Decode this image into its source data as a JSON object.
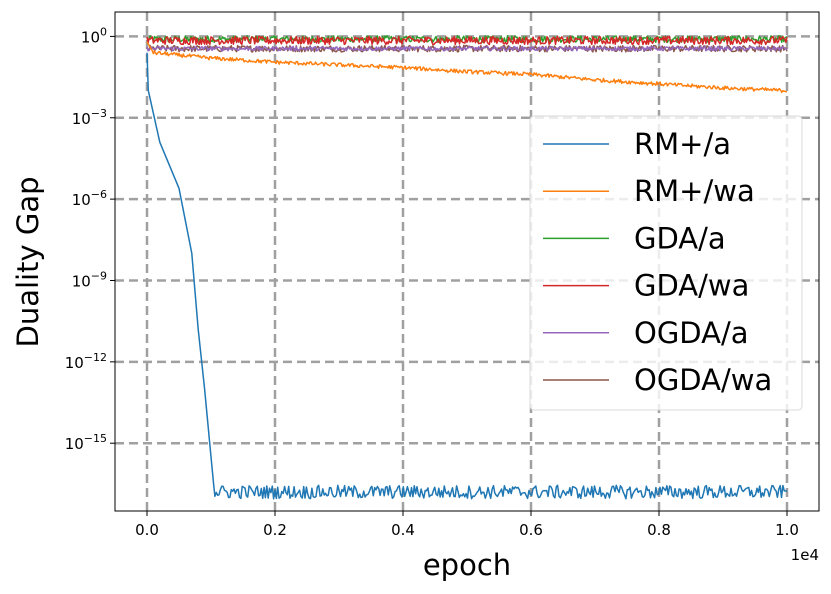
{
  "chart_data": {
    "type": "line",
    "title": "",
    "xlabel": "epoch",
    "ylabel": "Duality Gap",
    "x_offset_label": "1e4",
    "xlim": [
      -0.05,
      1.05
    ],
    "ylim_log10": [
      -17.5,
      0.9
    ],
    "x_ticks": [
      0.0,
      0.2,
      0.4,
      0.6,
      0.8,
      1.0
    ],
    "x_tick_labels": [
      "0.0",
      "0.2",
      "0.4",
      "0.6",
      "0.8",
      "1.0"
    ],
    "y_ticks_log10": [
      0,
      -3,
      -6,
      -9,
      -12,
      -15
    ],
    "y_tick_labels": [
      {
        "base": "10",
        "exp": "0"
      },
      {
        "base": "10",
        "exp": "−3"
      },
      {
        "base": "10",
        "exp": "−6"
      },
      {
        "base": "10",
        "exp": "−9"
      },
      {
        "base": "10",
        "exp": "−12"
      },
      {
        "base": "10",
        "exp": "−15"
      }
    ],
    "grid": true,
    "legend_position": "center-right",
    "series": [
      {
        "name": "RM+/a",
        "color": "#1f77b4",
        "points": [
          [
            0.0,
            -0.6
          ],
          [
            0.002,
            -2.0
          ],
          [
            0.02,
            -3.9
          ],
          [
            0.05,
            -5.6
          ],
          [
            0.07,
            -8.0
          ],
          [
            0.08,
            -10.8
          ],
          [
            0.09,
            -13.0
          ],
          [
            0.1,
            -15.5
          ],
          [
            0.104,
            -16.5
          ]
        ],
        "noise_from": 0.104,
        "noise_to": 1.0,
        "noise_center": -16.8,
        "noise_amp": 0.25
      },
      {
        "name": "RM+/wa",
        "color": "#ff7f0e",
        "points": [
          [
            0.0,
            -0.2
          ],
          [
            0.01,
            -0.6
          ],
          [
            0.1,
            -0.8
          ],
          [
            0.2,
            -0.95
          ],
          [
            0.3,
            -1.05
          ],
          [
            0.4,
            -1.15
          ],
          [
            0.5,
            -1.3
          ],
          [
            0.6,
            -1.4
          ],
          [
            0.7,
            -1.6
          ],
          [
            0.8,
            -1.75
          ],
          [
            0.9,
            -1.9
          ],
          [
            1.0,
            -2.0
          ]
        ],
        "noise_amp": 0.07
      },
      {
        "name": "GDA/a",
        "color": "#2ca02c",
        "flat_log10": -0.1,
        "noise_amp": 0.12
      },
      {
        "name": "GDA/wa",
        "color": "#d62728",
        "flat_log10": -0.15,
        "noise_amp": 0.15
      },
      {
        "name": "OGDA/a",
        "color": "#9467bd",
        "flat_log10": -0.45,
        "noise_amp": 0.08
      },
      {
        "name": "OGDA/wa",
        "color": "#8c564b",
        "flat_log10": -0.45,
        "noise_amp": 0.12
      }
    ]
  }
}
